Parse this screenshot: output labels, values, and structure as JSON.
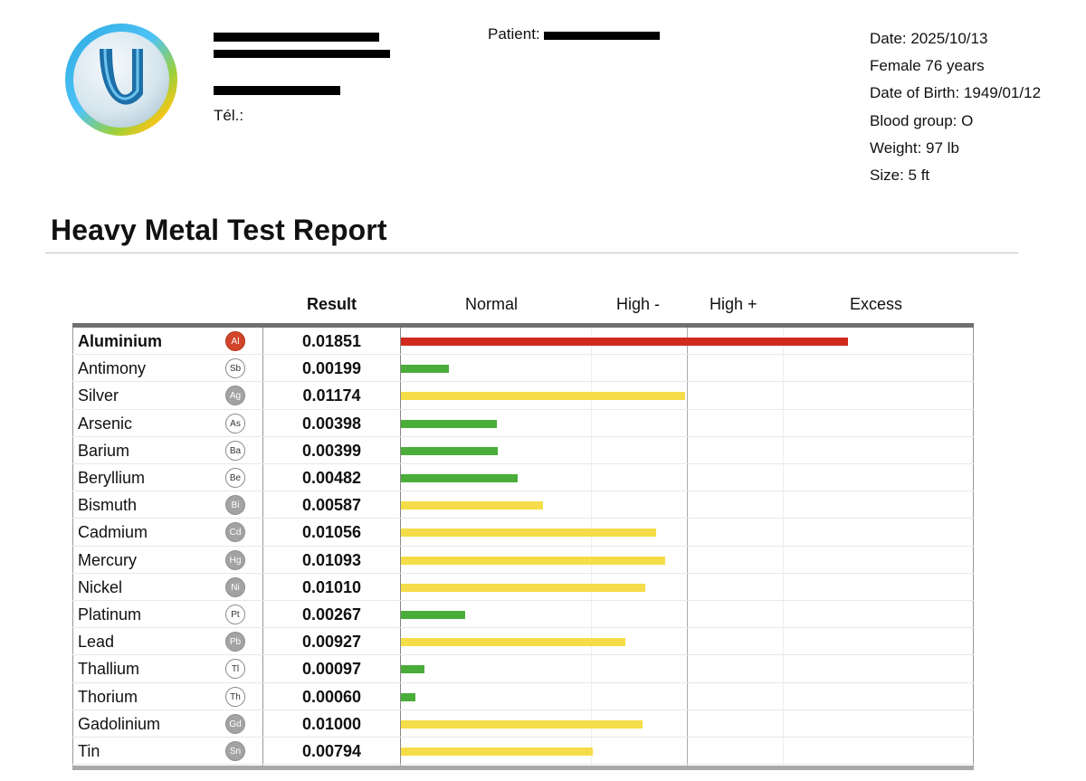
{
  "clinic": {
    "phone_label": "Tél."
  },
  "patient": {
    "label": "Patient:"
  },
  "info": {
    "date": "Date: 2025/10/13",
    "sex_age": "Female 76 years",
    "dob": "Date of Birth: 1949/01/12",
    "blood": "Blood group: O",
    "weight": "Weight: 97 lb",
    "size": "Size: 5 ft"
  },
  "report_title": "Heavy Metal Test Report",
  "table_headers": {
    "result": "Result",
    "normal": "Normal",
    "high_minus": "High -",
    "high_plus": "High +",
    "excess": "Excess"
  },
  "colors": {
    "normal": "#4aad3a",
    "high": "#f4dd48",
    "excess": "#d02a1e"
  },
  "chart_data": {
    "type": "bar",
    "orientation": "horizontal",
    "xlim": [
      0,
      0.0194
    ],
    "categories": [
      "Aluminium",
      "Antimony",
      "Silver",
      "Arsenic",
      "Barium",
      "Beryllium",
      "Bismuth",
      "Cadmium",
      "Mercury",
      "Nickel",
      "Platinum",
      "Lead",
      "Thallium",
      "Thorium",
      "Gadolinium",
      "Tin"
    ],
    "symbols": [
      "Al",
      "Sb",
      "Ag",
      "As",
      "Ba",
      "Be",
      "Bi",
      "Cd",
      "Hg",
      "Ni",
      "Pt",
      "Pb",
      "Tl",
      "Th",
      "Gd",
      "Sn"
    ],
    "values": [
      0.01851,
      0.00199,
      0.01174,
      0.00398,
      0.00399,
      0.00482,
      0.00587,
      0.01056,
      0.01093,
      0.0101,
      0.00267,
      0.00927,
      0.00097,
      0.0006,
      0.01,
      0.00794
    ],
    "value_labels": [
      "0.01851",
      "0.00199",
      "0.01174",
      "0.00398",
      "0.00399",
      "0.00482",
      "0.00587",
      "0.01056",
      "0.01093",
      "0.01010",
      "0.00267",
      "0.00927",
      "0.00097",
      "0.00060",
      "0.01000",
      "0.00794"
    ],
    "levels": [
      "excess",
      "normal",
      "high",
      "normal",
      "normal",
      "normal",
      "high",
      "high",
      "high",
      "high",
      "normal",
      "high",
      "normal",
      "normal",
      "high",
      "high"
    ],
    "symbol_styles": [
      "red",
      "white",
      "gray",
      "white",
      "white",
      "white",
      "gray",
      "gray",
      "gray",
      "gray",
      "white",
      "gray",
      "white",
      "white",
      "gray",
      "gray"
    ]
  }
}
